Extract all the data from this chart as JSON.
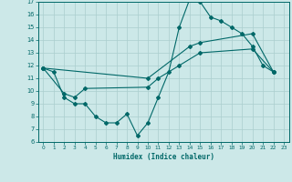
{
  "xlabel": "Humidex (Indice chaleur)",
  "xlim": [
    -0.5,
    23.5
  ],
  "ylim": [
    6,
    17
  ],
  "xticks": [
    0,
    1,
    2,
    3,
    4,
    5,
    6,
    7,
    8,
    9,
    10,
    11,
    12,
    13,
    14,
    15,
    16,
    17,
    18,
    19,
    20,
    21,
    22,
    23
  ],
  "yticks": [
    6,
    7,
    8,
    9,
    10,
    11,
    12,
    13,
    14,
    15,
    16,
    17
  ],
  "bg_color": "#cce8e8",
  "grid_color": "#aacece",
  "line_color": "#006868",
  "line1_x": [
    0,
    1,
    2,
    3,
    4,
    5,
    6,
    7,
    8,
    9,
    10,
    11,
    12,
    13,
    14,
    15,
    16,
    17,
    18,
    19,
    20,
    21,
    22
  ],
  "line1_y": [
    11.8,
    11.5,
    9.5,
    9.0,
    9.0,
    8.0,
    7.5,
    7.5,
    8.2,
    6.5,
    7.5,
    9.5,
    11.5,
    15.0,
    17.2,
    17.0,
    15.8,
    15.5,
    15.0,
    14.5,
    13.5,
    12.0,
    11.5
  ],
  "line2_x": [
    0,
    2,
    3,
    4,
    10,
    11,
    13,
    15,
    20,
    22
  ],
  "line2_y": [
    11.8,
    9.8,
    9.5,
    10.2,
    10.3,
    11.0,
    12.0,
    13.0,
    13.3,
    11.5
  ],
  "line3_x": [
    0,
    10,
    14,
    15,
    20,
    22
  ],
  "line3_y": [
    11.8,
    11.0,
    13.5,
    13.8,
    14.5,
    11.5
  ]
}
